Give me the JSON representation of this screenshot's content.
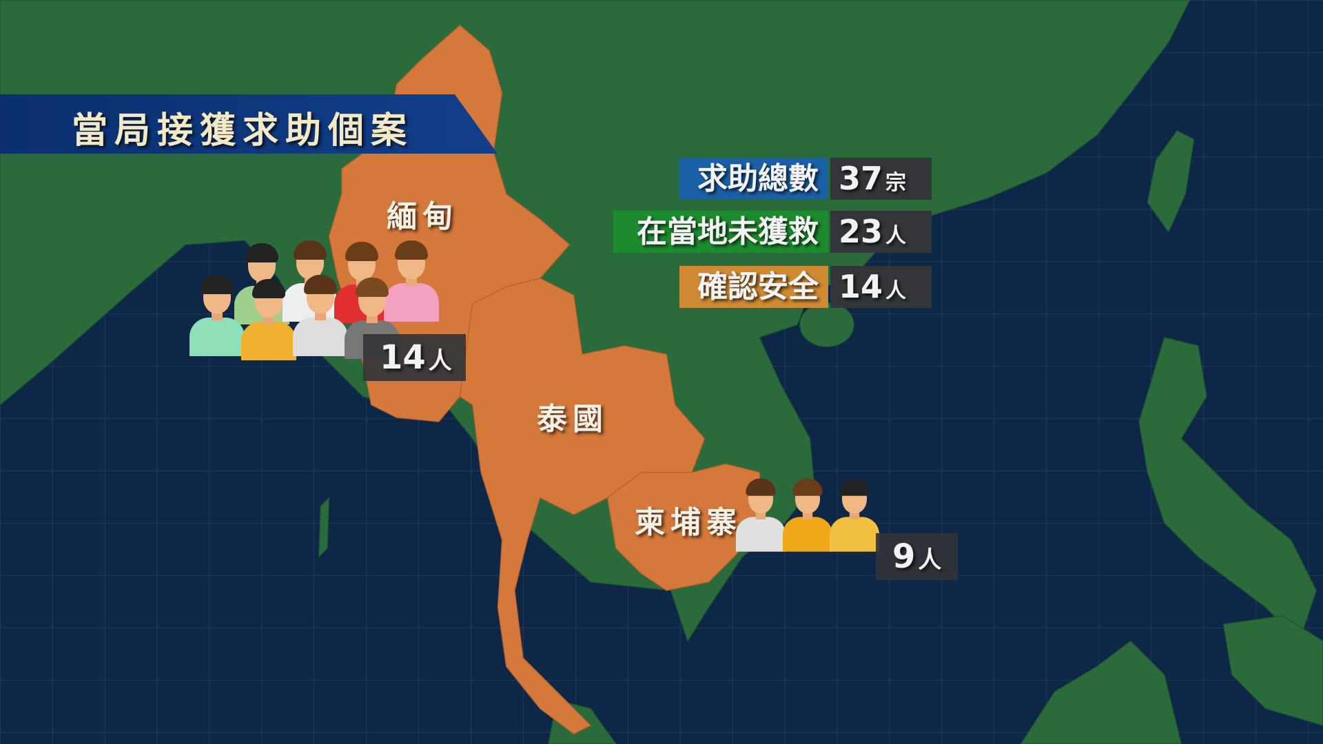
{
  "title": "當局接獲求助個案",
  "stats": [
    {
      "label": "求助總數",
      "value": "37",
      "unit": "宗",
      "color": "#1b5fa6"
    },
    {
      "label": "在當地未獲救",
      "value": "23",
      "unit": "人",
      "color": "#1c8a2e"
    },
    {
      "label": "確認安全",
      "value": "14",
      "unit": "人",
      "color": "#cf8a33"
    }
  ],
  "countries": {
    "myanmar": {
      "label": "緬甸",
      "count": "14",
      "unit": "人"
    },
    "thailand": {
      "label": "泰國"
    },
    "cambodia": {
      "label": "柬埔寨",
      "count": "9",
      "unit": "人"
    }
  },
  "colors": {
    "ocean": "#0f2747",
    "land": "#2a6a3b",
    "highlight": "#d4783b"
  },
  "people_icons": {
    "myanmar": [
      {
        "hair": "#222",
        "shirt": "#9fcf8c"
      },
      {
        "hair": "#5a3418",
        "shirt": "#eeeeee"
      },
      {
        "hair": "#6a3d1a",
        "shirt": "#e23030"
      },
      {
        "hair": "#6a3d1a",
        "shirt": "#f4a0c0"
      },
      {
        "hair": "#222",
        "shirt": "#8fe0b8"
      },
      {
        "hair": "#222",
        "shirt": "#f0b030"
      },
      {
        "hair": "#5a3418",
        "shirt": "#dddddd"
      },
      {
        "hair": "#7a4a22",
        "shirt": "#777777"
      }
    ],
    "cambodia": [
      {
        "hair": "#5a3418",
        "shirt": "#e0e0e0"
      },
      {
        "hair": "#6a3d1a",
        "shirt": "#f0a818"
      },
      {
        "hair": "#222",
        "shirt": "#f0c040"
      }
    ]
  }
}
